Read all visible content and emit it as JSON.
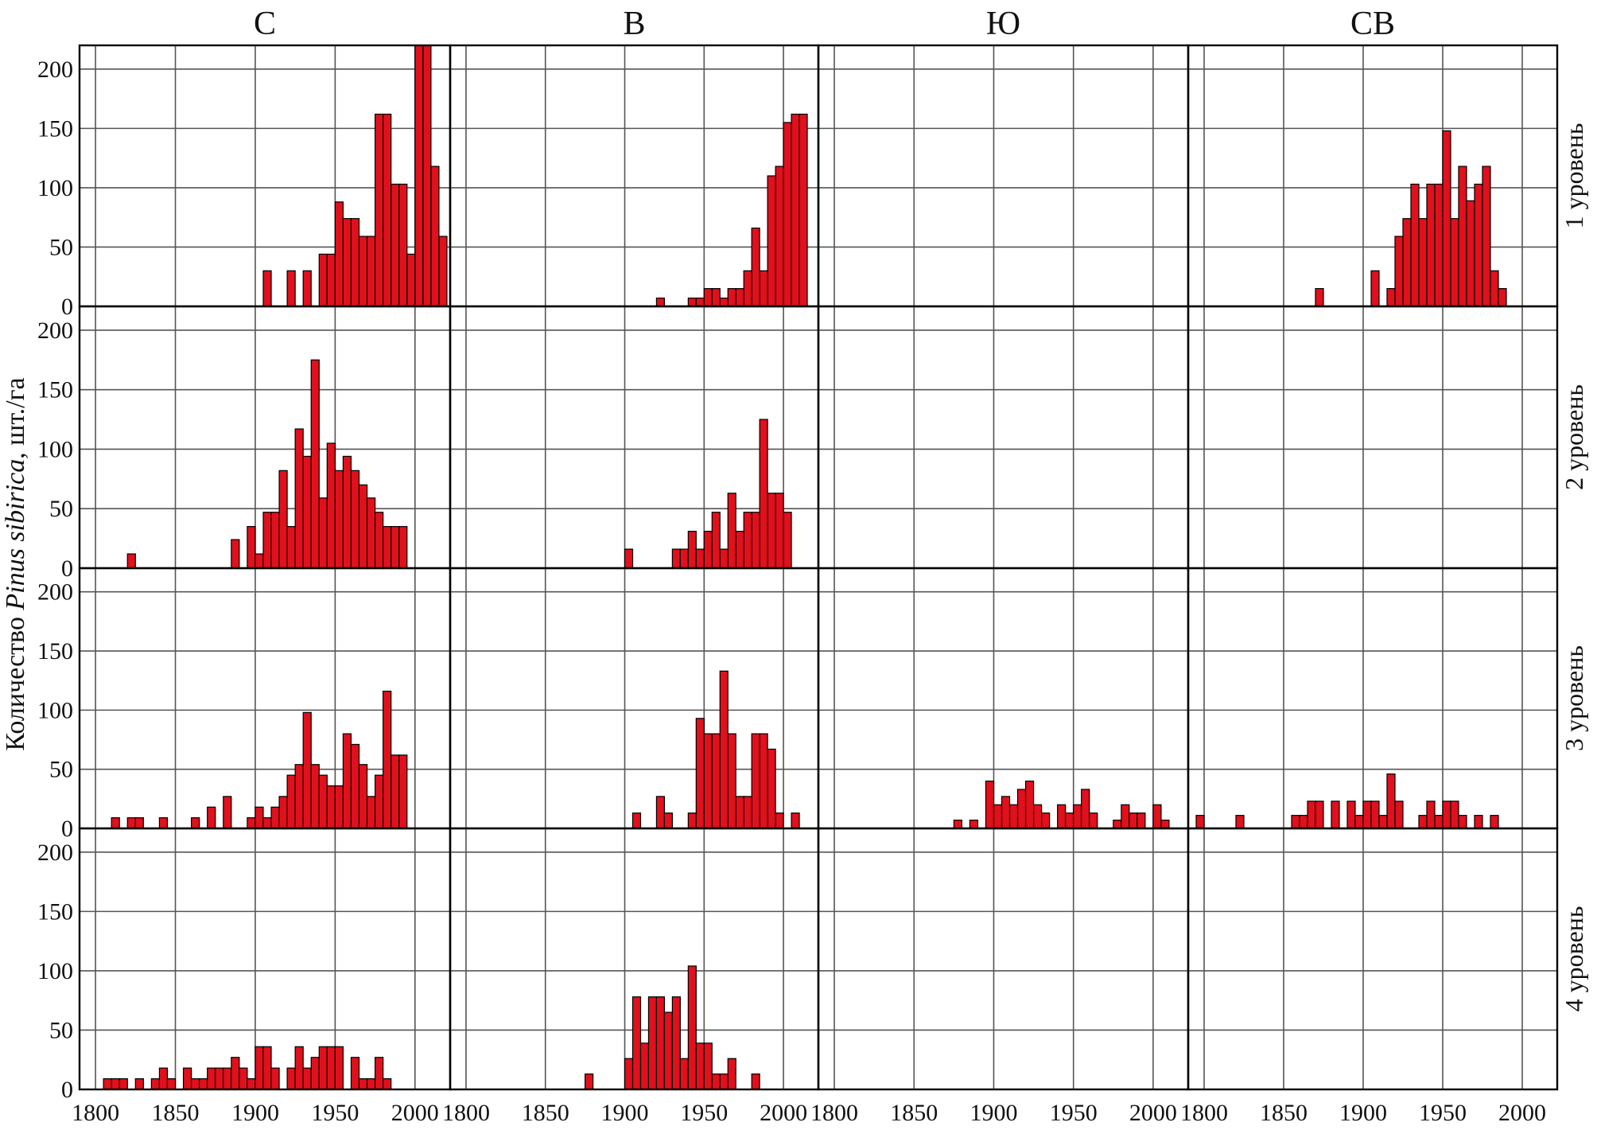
{
  "chart_data": {
    "type": "bar",
    "ylabel_parts": [
      "Количество ",
      "Pinus sibirica",
      ", шт./га"
    ],
    "columns": [
      "С",
      "В",
      "Ю",
      "СВ"
    ],
    "rows": [
      "1 уровень",
      "2 уровень",
      "3 уровень",
      "4 уровень"
    ],
    "xlim": [
      1790,
      2022
    ],
    "ylim": [
      0,
      220
    ],
    "x_ticks": [
      1800,
      1850,
      1900,
      1950,
      2000
    ],
    "y_ticks": [
      0,
      50,
      100,
      150,
      200
    ],
    "bin_width": 5,
    "grid": true,
    "bar_color": "#e0101c",
    "panels": [
      {
        "column": "С",
        "row": "1 уровень",
        "x": [
          1905,
          1920,
          1930,
          1940,
          1945,
          1950,
          1955,
          1960,
          1965,
          1970,
          1975,
          1980,
          1985,
          1990,
          1995,
          2000,
          2005,
          2010,
          2015
        ],
        "y": [
          30,
          30,
          30,
          44,
          44,
          88,
          74,
          74,
          59,
          59,
          162,
          162,
          103,
          103,
          44,
          220,
          220,
          118,
          59
        ]
      },
      {
        "column": "В",
        "row": "1 уровень",
        "x": [
          1920,
          1940,
          1945,
          1950,
          1955,
          1960,
          1965,
          1970,
          1975,
          1980,
          1985,
          1990,
          1995,
          2000,
          2005,
          2010
        ],
        "y": [
          7,
          7,
          7,
          15,
          15,
          7,
          15,
          15,
          30,
          66,
          30,
          110,
          118,
          155,
          162,
          162
        ]
      },
      {
        "column": "Ю",
        "row": "1 уровень",
        "x": [],
        "y": []
      },
      {
        "column": "СВ",
        "row": "1 уровень",
        "x": [
          1870,
          1905,
          1915,
          1920,
          1925,
          1930,
          1935,
          1940,
          1945,
          1950,
          1955,
          1960,
          1965,
          1970,
          1975,
          1980,
          1985
        ],
        "y": [
          15,
          30,
          15,
          59,
          74,
          103,
          74,
          103,
          103,
          148,
          74,
          118,
          89,
          103,
          118,
          30,
          15
        ]
      },
      {
        "column": "С",
        "row": "2 уровень",
        "x": [
          1820,
          1885,
          1895,
          1900,
          1905,
          1910,
          1915,
          1920,
          1925,
          1930,
          1935,
          1940,
          1945,
          1950,
          1955,
          1960,
          1965,
          1970,
          1975,
          1980,
          1985,
          1990
        ],
        "y": [
          12,
          24,
          35,
          12,
          47,
          47,
          82,
          35,
          117,
          94,
          175,
          59,
          105,
          82,
          94,
          82,
          70,
          59,
          47,
          35,
          35,
          35
        ]
      },
      {
        "column": "В",
        "row": "2 уровень",
        "x": [
          1900,
          1930,
          1935,
          1940,
          1945,
          1950,
          1955,
          1960,
          1965,
          1970,
          1975,
          1980,
          1985,
          1990,
          1995,
          2000
        ],
        "y": [
          16,
          16,
          16,
          31,
          16,
          31,
          47,
          16,
          63,
          31,
          47,
          47,
          125,
          63,
          63,
          47
        ]
      },
      {
        "column": "Ю",
        "row": "2 уровень",
        "x": [],
        "y": []
      },
      {
        "column": "СВ",
        "row": "2 уровень",
        "x": [],
        "y": []
      },
      {
        "column": "С",
        "row": "3 уровень",
        "x": [
          1810,
          1820,
          1825,
          1840,
          1860,
          1870,
          1880,
          1895,
          1900,
          1905,
          1910,
          1915,
          1920,
          1925,
          1930,
          1935,
          1940,
          1945,
          1950,
          1955,
          1960,
          1965,
          1970,
          1975,
          1980,
          1985,
          1990
        ],
        "y": [
          9,
          9,
          9,
          9,
          9,
          18,
          27,
          9,
          18,
          9,
          18,
          27,
          45,
          54,
          98,
          54,
          45,
          36,
          36,
          80,
          71,
          54,
          27,
          45,
          116,
          62,
          62
        ]
      },
      {
        "column": "В",
        "row": "3 уровень",
        "x": [
          1905,
          1920,
          1925,
          1940,
          1945,
          1950,
          1955,
          1960,
          1965,
          1970,
          1975,
          1980,
          1985,
          1990,
          1995,
          2005
        ],
        "y": [
          13,
          27,
          13,
          13,
          93,
          80,
          80,
          133,
          80,
          27,
          27,
          80,
          80,
          67,
          13,
          13
        ]
      },
      {
        "column": "Ю",
        "row": "3 уровень",
        "x": [
          1875,
          1885,
          1895,
          1900,
          1905,
          1910,
          1915,
          1920,
          1925,
          1930,
          1940,
          1945,
          1950,
          1955,
          1960,
          1975,
          1980,
          1985,
          1990,
          2000,
          2005
        ],
        "y": [
          7,
          7,
          40,
          20,
          27,
          20,
          33,
          40,
          20,
          13,
          20,
          13,
          20,
          33,
          13,
          7,
          20,
          13,
          13,
          20,
          7
        ]
      },
      {
        "column": "СВ",
        "row": "3 уровень",
        "x": [
          1795,
          1820,
          1855,
          1860,
          1865,
          1870,
          1880,
          1890,
          1895,
          1900,
          1905,
          1910,
          1915,
          1920,
          1935,
          1940,
          1945,
          1950,
          1955,
          1960,
          1970,
          1980
        ],
        "y": [
          11,
          11,
          11,
          11,
          23,
          23,
          23,
          23,
          11,
          23,
          23,
          11,
          46,
          23,
          11,
          23,
          11,
          23,
          23,
          11,
          11,
          11
        ]
      },
      {
        "column": "С",
        "row": "4 уровень",
        "x": [
          1805,
          1810,
          1815,
          1825,
          1835,
          1840,
          1845,
          1855,
          1860,
          1865,
          1870,
          1875,
          1880,
          1885,
          1890,
          1895,
          1900,
          1905,
          1910,
          1920,
          1925,
          1930,
          1935,
          1940,
          1945,
          1950,
          1960,
          1965,
          1970,
          1975,
          1980
        ],
        "y": [
          9,
          9,
          9,
          9,
          9,
          18,
          9,
          18,
          9,
          9,
          18,
          18,
          18,
          27,
          18,
          9,
          36,
          36,
          18,
          18,
          36,
          18,
          27,
          36,
          36,
          36,
          27,
          9,
          9,
          27,
          9
        ]
      },
      {
        "column": "В",
        "row": "4 уровень",
        "x": [
          1875,
          1900,
          1905,
          1910,
          1915,
          1920,
          1925,
          1930,
          1935,
          1940,
          1945,
          1950,
          1955,
          1960,
          1965,
          1980
        ],
        "y": [
          13,
          26,
          78,
          39,
          78,
          78,
          65,
          78,
          26,
          104,
          39,
          39,
          13,
          13,
          26,
          13
        ]
      },
      {
        "column": "Ю",
        "row": "4 уровень",
        "x": [],
        "y": []
      },
      {
        "column": "СВ",
        "row": "4 уровень",
        "x": [],
        "y": []
      }
    ]
  }
}
